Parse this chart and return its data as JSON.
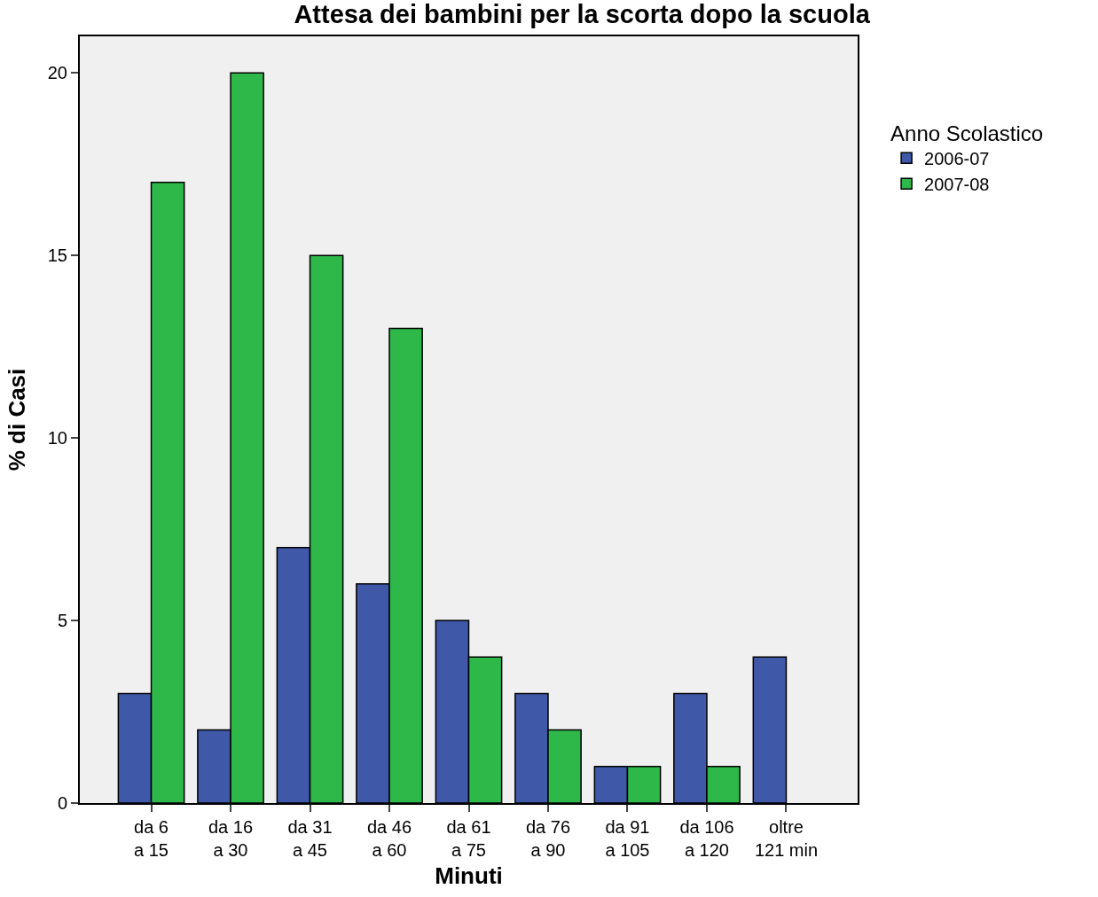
{
  "chart_data": {
    "type": "bar",
    "title": "Attesa dei bambini per la scorta dopo la scuola",
    "xlabel": "Minuti",
    "ylabel": "% di Casi",
    "legend_title": "Anno Scolastico",
    "categories": [
      "da 6\na 15",
      "da 16\na 30",
      "da 31\na 45",
      "da 46\na 60",
      "da 61\na 75",
      "da 76\na 90",
      "da 91\na 105",
      "da 106\na 120",
      "oltre\n121 min"
    ],
    "series": [
      {
        "name": "2006-07",
        "color": "#3f58a8",
        "values": [
          3,
          2,
          7,
          6,
          5,
          3,
          1,
          3,
          4
        ]
      },
      {
        "name": "2007-08",
        "color": "#2eb84a",
        "values": [
          17,
          20,
          15,
          13,
          4,
          2,
          1,
          1,
          null
        ]
      }
    ],
    "ylim": [
      0,
      21
    ],
    "yticks": [
      0,
      5,
      10,
      15,
      20
    ],
    "grid": false,
    "legend": "right"
  }
}
